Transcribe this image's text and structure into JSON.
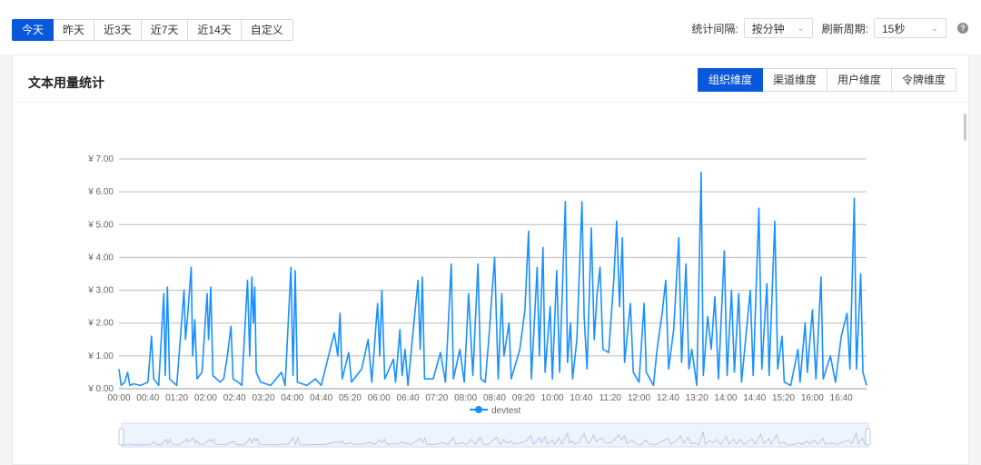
{
  "ranges": [
    {
      "label": "今天",
      "active": true
    },
    {
      "label": "昨天"
    },
    {
      "label": "近3天"
    },
    {
      "label": "近7天"
    },
    {
      "label": "近14天"
    },
    {
      "label": "自定义"
    }
  ],
  "controls": {
    "interval_label": "统计间隔:",
    "interval_value": "按分钟",
    "refresh_label": "刷新周期:",
    "refresh_value": "15秒"
  },
  "card": {
    "title": "文本用量统计",
    "dimensions": [
      {
        "label": "组织维度",
        "active": true
      },
      {
        "label": "渠道维度"
      },
      {
        "label": "用户维度"
      },
      {
        "label": "令牌维度"
      }
    ]
  },
  "colors": {
    "accent": "#0958d9",
    "series": "#1890ff"
  },
  "chart_data": {
    "type": "line",
    "ylim": [
      0,
      7
    ],
    "yticks": [
      "¥ 0.00",
      "¥ 1.00",
      "¥ 2.00",
      "¥ 3.00",
      "¥ 4.00",
      "¥ 5.00",
      "¥ 6.00",
      "¥ 7.00"
    ],
    "xticks": [
      "00:00",
      "00:40",
      "01:20",
      "02:00",
      "02:40",
      "03:20",
      "04:00",
      "04:40",
      "05:20",
      "06:00",
      "06:40",
      "07:20",
      "08:00",
      "08:40",
      "09:20",
      "10:00",
      "10:40",
      "11:20",
      "12:00",
      "12:40",
      "13:20",
      "14:00",
      "14:40",
      "15:20",
      "16:00",
      "16:40"
    ],
    "x_range_minutes": [
      0,
      1035
    ],
    "series": [
      {
        "name": "devtest",
        "points": [
          [
            0,
            0.6
          ],
          [
            3,
            0.1
          ],
          [
            8,
            0.2
          ],
          [
            12,
            0.5
          ],
          [
            15,
            0.1
          ],
          [
            20,
            0.15
          ],
          [
            30,
            0.1
          ],
          [
            40,
            0.2
          ],
          [
            45,
            1.6
          ],
          [
            48,
            0.3
          ],
          [
            55,
            0.1
          ],
          [
            62,
            2.9
          ],
          [
            64,
            0.4
          ],
          [
            67,
            3.1
          ],
          [
            70,
            0.3
          ],
          [
            75,
            0.2
          ],
          [
            80,
            0.1
          ],
          [
            90,
            3.0
          ],
          [
            92,
            1.5
          ],
          [
            95,
            2.2
          ],
          [
            100,
            3.7
          ],
          [
            102,
            1.0
          ],
          [
            105,
            2.1
          ],
          [
            108,
            0.3
          ],
          [
            115,
            0.5
          ],
          [
            122,
            2.9
          ],
          [
            124,
            1.5
          ],
          [
            127,
            3.1
          ],
          [
            130,
            0.4
          ],
          [
            140,
            0.2
          ],
          [
            145,
            0.3
          ],
          [
            150,
            1.0
          ],
          [
            155,
            1.9
          ],
          [
            158,
            0.3
          ],
          [
            165,
            0.2
          ],
          [
            170,
            0.1
          ],
          [
            178,
            3.3
          ],
          [
            181,
            1.0
          ],
          [
            184,
            3.4
          ],
          [
            186,
            2.0
          ],
          [
            188,
            3.1
          ],
          [
            190,
            0.5
          ],
          [
            196,
            0.2
          ],
          [
            210,
            0.1
          ],
          [
            225,
            0.5
          ],
          [
            230,
            0.1
          ],
          [
            238,
            3.7
          ],
          [
            241,
            0.4
          ],
          [
            244,
            3.6
          ],
          [
            247,
            0.2
          ],
          [
            260,
            0.1
          ],
          [
            272,
            0.3
          ],
          [
            280,
            0.1
          ],
          [
            298,
            1.7
          ],
          [
            303,
            1.0
          ],
          [
            306,
            2.3
          ],
          [
            309,
            0.3
          ],
          [
            318,
            1.1
          ],
          [
            322,
            0.2
          ],
          [
            336,
            0.6
          ],
          [
            345,
            1.5
          ],
          [
            350,
            0.2
          ],
          [
            358,
            2.6
          ],
          [
            361,
            1.0
          ],
          [
            364,
            3.0
          ],
          [
            368,
            0.3
          ],
          [
            380,
            0.9
          ],
          [
            383,
            0.2
          ],
          [
            389,
            1.8
          ],
          [
            392,
            0.4
          ],
          [
            396,
            1.2
          ],
          [
            400,
            0.1
          ],
          [
            414,
            3.3
          ],
          [
            417,
            1.2
          ],
          [
            420,
            3.4
          ],
          [
            423,
            0.3
          ],
          [
            435,
            0.3
          ],
          [
            445,
            1.1
          ],
          [
            452,
            0.2
          ],
          [
            460,
            3.8
          ],
          [
            463,
            0.3
          ],
          [
            472,
            1.2
          ],
          [
            478,
            0.2
          ],
          [
            484,
            2.9
          ],
          [
            490,
            0.4
          ],
          [
            497,
            3.8
          ],
          [
            501,
            0.3
          ],
          [
            507,
            0.2
          ],
          [
            512,
            1.5
          ],
          [
            520,
            4.0
          ],
          [
            525,
            0.3
          ],
          [
            530,
            2.9
          ],
          [
            533,
            1.0
          ],
          [
            540,
            2.0
          ],
          [
            543,
            0.3
          ],
          [
            555,
            1.2
          ],
          [
            562,
            2.4
          ],
          [
            567,
            4.8
          ],
          [
            571,
            0.3
          ],
          [
            579,
            3.7
          ],
          [
            582,
            1.0
          ],
          [
            587,
            4.3
          ],
          [
            590,
            0.5
          ],
          [
            597,
            2.5
          ],
          [
            600,
            0.3
          ],
          [
            606,
            3.6
          ],
          [
            610,
            0.5
          ],
          [
            618,
            5.7
          ],
          [
            621,
            0.8
          ],
          [
            625,
            2.0
          ],
          [
            628,
            0.3
          ],
          [
            634,
            1.5
          ],
          [
            641,
            5.7
          ],
          [
            644,
            2.2
          ],
          [
            648,
            0.6
          ],
          [
            654,
            4.9
          ],
          [
            658,
            1.5
          ],
          [
            662,
            2.9
          ],
          [
            666,
            3.7
          ],
          [
            670,
            1.2
          ],
          [
            678,
            1.1
          ],
          [
            685,
            3.3
          ],
          [
            689,
            5.1
          ],
          [
            693,
            2.5
          ],
          [
            697,
            4.6
          ],
          [
            700,
            0.8
          ],
          [
            708,
            2.6
          ],
          [
            712,
            0.5
          ],
          [
            720,
            0.2
          ],
          [
            727,
            2.6
          ],
          [
            730,
            0.5
          ],
          [
            740,
            0.1
          ],
          [
            745,
            1.2
          ],
          [
            752,
            2.3
          ],
          [
            757,
            3.3
          ],
          [
            761,
            0.6
          ],
          [
            768,
            1.8
          ],
          [
            775,
            4.6
          ],
          [
            779,
            0.8
          ],
          [
            785,
            3.8
          ],
          [
            789,
            0.6
          ],
          [
            793,
            1.2
          ],
          [
            800,
            0.1
          ],
          [
            806,
            6.6
          ],
          [
            809,
            0.4
          ],
          [
            815,
            2.2
          ],
          [
            820,
            1.2
          ],
          [
            825,
            2.8
          ],
          [
            830,
            0.3
          ],
          [
            838,
            4.2
          ],
          [
            842,
            0.4
          ],
          [
            848,
            3.0
          ],
          [
            852,
            0.5
          ],
          [
            858,
            2.9
          ],
          [
            862,
            0.2
          ],
          [
            874,
            3.0
          ],
          [
            878,
            0.4
          ],
          [
            886,
            5.5
          ],
          [
            890,
            0.6
          ],
          [
            897,
            3.2
          ],
          [
            900,
            0.4
          ],
          [
            908,
            5.1
          ],
          [
            912,
            0.6
          ],
          [
            918,
            1.6
          ],
          [
            921,
            0.2
          ],
          [
            930,
            0.1
          ],
          [
            940,
            1.2
          ],
          [
            943,
            0.2
          ],
          [
            950,
            2.0
          ],
          [
            953,
            0.5
          ],
          [
            960,
            2.4
          ],
          [
            965,
            0.3
          ],
          [
            972,
            3.4
          ],
          [
            975,
            0.3
          ],
          [
            985,
            1.0
          ],
          [
            992,
            0.2
          ],
          [
            1000,
            1.6
          ],
          [
            1008,
            2.3
          ],
          [
            1012,
            0.6
          ],
          [
            1018,
            5.8
          ],
          [
            1021,
            0.6
          ],
          [
            1027,
            3.5
          ],
          [
            1030,
            0.5
          ],
          [
            1035,
            0.1
          ]
        ]
      }
    ]
  }
}
